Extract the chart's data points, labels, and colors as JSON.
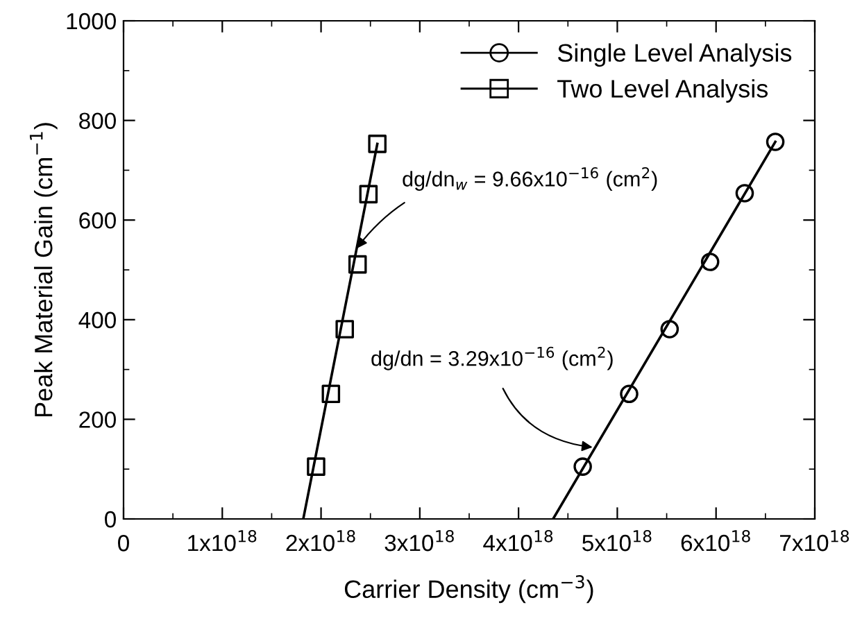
{
  "chart_data": {
    "type": "scatter",
    "xlabel": "Carrier Density (cm$^{−3}$)",
    "ylabel": "Peak Material Gain (cm$^{−1}$)",
    "series": [
      {
        "name": "Single Level Analysis",
        "marker": "circle",
        "color": "#000000",
        "x": [
          4.65e+18,
          5.12e+18,
          5.53e+18,
          5.94e+18,
          6.29e+18,
          6.6e+18
        ],
        "values": [
          105,
          251,
          381,
          516,
          654,
          757
        ]
      },
      {
        "name": "Two Level Analysis",
        "marker": "square",
        "color": "#000000",
        "x": [
          1.95e+18,
          2.1e+18,
          2.24e+18,
          2.37e+18,
          2.48e+18,
          2.57e+18
        ],
        "values": [
          105,
          251,
          381,
          511,
          652,
          753
        ]
      },
      {
        "type": "line",
        "marker": "none",
        "color": "#000000",
        "x": [
          4.35e+18,
          6.6e+18
        ],
        "values": [
          0,
          757
        ]
      },
      {
        "type": "line",
        "marker": "none",
        "color": "#000000",
        "x": [
          1.82e+18,
          2.57e+18
        ],
        "values": [
          0,
          753
        ]
      }
    ],
    "annotations": [
      {
        "text": "dg/dn$_{w}$ = 9.66x10$^{−16}$ (cm$^{2}$)",
        "x": 2.36e+18,
        "y": 543
      },
      {
        "text": "dg/dn = 3.29x10$^{−16}$ (cm$^{2}$)",
        "x": 4.75e+18,
        "y": 144
      }
    ],
    "xlim": [
      0,
      7e+18
    ],
    "ylim": [
      0,
      1000
    ],
    "xticks": [
      0,
      {
        "value": 1e+18,
        "label": "1x10$^{18}$"
      },
      {
        "value": 2e+18,
        "label": "2x10$^{18}$"
      },
      {
        "value": 3e+18,
        "label": "3x10$^{18}$"
      },
      {
        "value": 4e+18,
        "label": "4x10$^{18}$"
      },
      {
        "value": 5e+18,
        "label": "5x10$^{18}$"
      },
      {
        "value": 6e+18,
        "label": "6x10$^{18}$"
      },
      {
        "value": 7e+18,
        "label": "7x10$^{18}$"
      }
    ],
    "yticks": [
      0,
      200,
      400,
      600,
      800,
      1000
    ],
    "legend": "top right",
    "grid": false
  }
}
